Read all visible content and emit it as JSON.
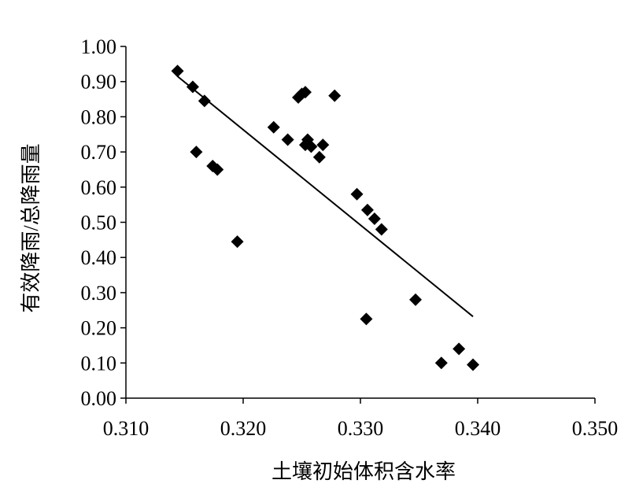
{
  "chart_data": {
    "type": "scatter",
    "xlabel": "土壤初始体积含水率",
    "ylabel": "有效降雨/总降雨量",
    "xlim": [
      0.31,
      0.35
    ],
    "ylim": [
      0.0,
      1.0
    ],
    "x_ticks": [
      "0.310",
      "0.320",
      "0.330",
      "0.340",
      "0.350"
    ],
    "y_ticks": [
      "0.00",
      "0.10",
      "0.20",
      "0.30",
      "0.40",
      "0.50",
      "0.60",
      "0.70",
      "0.80",
      "0.90",
      "1.00"
    ],
    "grid": false,
    "legend": "none",
    "marker": "diamond",
    "marker_color": "#000000",
    "points": [
      {
        "x": 0.3144,
        "y": 0.93
      },
      {
        "x": 0.3157,
        "y": 0.885
      },
      {
        "x": 0.3167,
        "y": 0.845
      },
      {
        "x": 0.316,
        "y": 0.7
      },
      {
        "x": 0.3174,
        "y": 0.66
      },
      {
        "x": 0.3178,
        "y": 0.65
      },
      {
        "x": 0.3195,
        "y": 0.445
      },
      {
        "x": 0.3226,
        "y": 0.77
      },
      {
        "x": 0.3238,
        "y": 0.735
      },
      {
        "x": 0.3247,
        "y": 0.855
      },
      {
        "x": 0.325,
        "y": 0.865
      },
      {
        "x": 0.3253,
        "y": 0.87
      },
      {
        "x": 0.3253,
        "y": 0.72
      },
      {
        "x": 0.3255,
        "y": 0.735
      },
      {
        "x": 0.3258,
        "y": 0.715
      },
      {
        "x": 0.3265,
        "y": 0.685
      },
      {
        "x": 0.3268,
        "y": 0.72
      },
      {
        "x": 0.3278,
        "y": 0.86
      },
      {
        "x": 0.3297,
        "y": 0.58
      },
      {
        "x": 0.3306,
        "y": 0.535
      },
      {
        "x": 0.3312,
        "y": 0.51
      },
      {
        "x": 0.3318,
        "y": 0.48
      },
      {
        "x": 0.3305,
        "y": 0.225
      },
      {
        "x": 0.3347,
        "y": 0.28
      },
      {
        "x": 0.3369,
        "y": 0.1
      },
      {
        "x": 0.3384,
        "y": 0.14
      },
      {
        "x": 0.3396,
        "y": 0.095
      }
    ],
    "trendline": {
      "type": "linear",
      "x": [
        0.3144,
        0.3396
      ],
      "y": [
        0.915,
        0.232
      ]
    }
  }
}
